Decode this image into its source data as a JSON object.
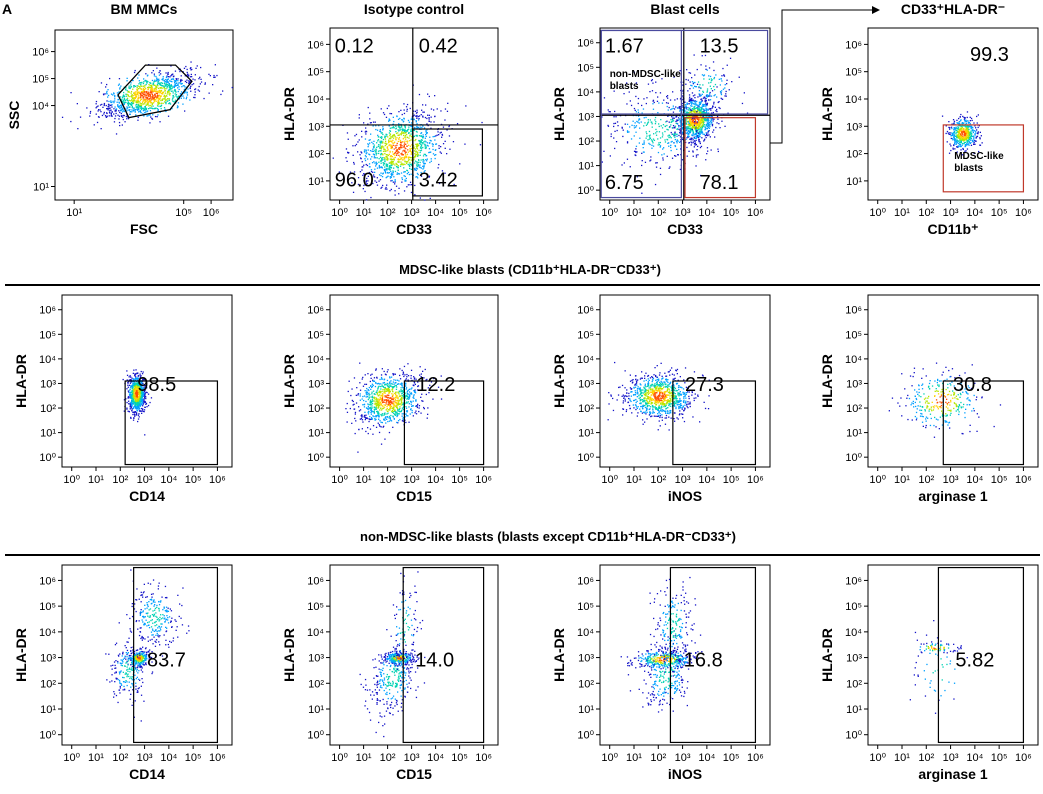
{
  "panel_letter": "A",
  "section_titles": [
    "MDSC-like blasts (CD11b⁺HLA-DR⁻CD33⁺)",
    "non-MDSC-like blasts (blasts except CD11b⁺HLA-DR⁻CD33⁺)"
  ],
  "colors": {
    "density": [
      "#1414c8",
      "#00a0ff",
      "#00d2b4",
      "#b4e600",
      "#ffd200",
      "#ff5000"
    ],
    "gate_black": "#000000",
    "gate_blue": "#4a4a9e",
    "gate_red": "#c0392b",
    "divider": "#000000"
  },
  "chart_data": [
    {
      "type": "scatter",
      "style": "density-dot-plot",
      "title": "BM MMCs",
      "xlabel": "FSC",
      "ylabel": "SSC",
      "x_ticks": [
        "10¹",
        "10⁵",
        "10⁶"
      ],
      "x_tick_values": [
        1,
        5,
        6
      ],
      "y_ticks": [
        "10¹",
        "10⁴",
        "10⁵",
        "10⁶"
      ],
      "y_tick_values": [
        1,
        4,
        5,
        6
      ],
      "xlim": [
        0.3,
        6.8
      ],
      "ylim": [
        0.5,
        6.8
      ],
      "populations": [
        {
          "cx": 3.7,
          "cy": 4.4,
          "sx": 0.9,
          "sy": 0.45,
          "rho": 0.6,
          "n": 1100
        }
      ],
      "gates": [
        {
          "kind": "polygon",
          "color": "gate_black",
          "points": [
            [
              2.6,
              4.4
            ],
            [
              3.6,
              5.5
            ],
            [
              4.7,
              5.5
            ],
            [
              5.3,
              4.9
            ],
            [
              4.5,
              3.85
            ],
            [
              3.0,
              3.55
            ]
          ]
        }
      ],
      "labels": []
    },
    {
      "type": "scatter",
      "style": "density-dot-plot",
      "title": "Isotype control",
      "xlabel": "CD33",
      "ylabel": "HLA-DR",
      "x_ticks": [
        "10⁰",
        "10¹",
        "10²",
        "10³",
        "10⁴",
        "10⁵",
        "10⁶"
      ],
      "x_tick_values": [
        0,
        1,
        2,
        3,
        4,
        5,
        6
      ],
      "y_ticks": [
        "10¹",
        "10²",
        "10³",
        "10⁴",
        "10⁵",
        "10⁶"
      ],
      "y_tick_values": [
        1,
        2,
        3,
        4,
        5,
        6
      ],
      "xlim": [
        -0.4,
        6.6
      ],
      "ylim": [
        0.3,
        6.6
      ],
      "populations": [
        {
          "cx": 2.5,
          "cy": 2.2,
          "sx": 0.9,
          "sy": 0.7,
          "rho": 0.2,
          "n": 1100
        }
      ],
      "gates": [
        {
          "kind": "quad",
          "x": 3.05,
          "y": 3.05,
          "color": "gate_black"
        },
        {
          "kind": "rect",
          "x0": 3.05,
          "x1": 5.95,
          "y0": 0.45,
          "y1": 2.9,
          "color": "gate_black"
        }
      ],
      "labels": [
        {
          "text": "0.12",
          "x": -0.2,
          "y": 5.7
        },
        {
          "text": "0.42",
          "x": 3.3,
          "y": 5.7
        },
        {
          "text": "96.0",
          "x": -0.2,
          "y": 0.8
        },
        {
          "text": "3.42",
          "x": 3.3,
          "y": 0.8
        }
      ]
    },
    {
      "type": "scatter",
      "style": "density-dot-plot",
      "title": "Blast cells",
      "xlabel": "CD33",
      "ylabel": "HLA-DR",
      "x_ticks": [
        "10⁰",
        "10¹",
        "10²",
        "10³",
        "10⁴",
        "10⁵",
        "10⁶"
      ],
      "x_tick_values": [
        0,
        1,
        2,
        3,
        4,
        5,
        6
      ],
      "y_ticks": [
        "10⁰",
        "10¹",
        "10²",
        "10³",
        "10⁴",
        "10⁵",
        "10⁶"
      ],
      "y_tick_values": [
        0,
        1,
        2,
        3,
        4,
        5,
        6
      ],
      "xlim": [
        -0.4,
        6.6
      ],
      "ylim": [
        -0.4,
        6.6
      ],
      "populations": [
        {
          "cx": 3.5,
          "cy": 2.9,
          "sx": 0.4,
          "sy": 0.45,
          "rho": 0.1,
          "n": 900
        },
        {
          "cx": 2.0,
          "cy": 2.5,
          "sx": 1.1,
          "sy": 0.9,
          "rho": 0.0,
          "n": 400
        },
        {
          "cx": 4.0,
          "cy": 4.3,
          "sx": 0.6,
          "sy": 0.5,
          "rho": 0.0,
          "n": 120
        }
      ],
      "gates": [
        {
          "kind": "quad",
          "x": 3.05,
          "y": 3.05,
          "color": "gate_black"
        },
        {
          "kind": "rect",
          "x0": -0.35,
          "x1": 6.5,
          "y0": 3.1,
          "y1": 6.5,
          "color": "gate_blue"
        },
        {
          "kind": "rect",
          "x0": -0.35,
          "x1": 2.95,
          "y0": -0.3,
          "y1": 6.5,
          "color": "gate_blue"
        },
        {
          "kind": "rect",
          "x0": 3.1,
          "x1": 6.0,
          "y0": -0.3,
          "y1": 2.95,
          "color": "gate_red"
        }
      ],
      "labels": [
        {
          "text": "1.67",
          "x": -0.2,
          "y": 5.6
        },
        {
          "text": "13.5",
          "x": 3.7,
          "y": 5.6
        },
        {
          "text": "6.75",
          "x": -0.2,
          "y": 0.05
        },
        {
          "text": "78.1",
          "x": 3.7,
          "y": 0.05
        }
      ],
      "annotations": [
        {
          "text": "non-MDSC-like blasts",
          "lines": [
            "non-MDSC-like",
            "blasts"
          ],
          "x": 0.0,
          "y": 4.6
        }
      ]
    },
    {
      "type": "scatter",
      "style": "density-dot-plot",
      "title": "CD33⁺HLA-DR⁻",
      "xlabel": "CD11b⁺",
      "ylabel": "HLA-DR",
      "x_ticks": [
        "10⁰",
        "10¹",
        "10²",
        "10³",
        "10⁴",
        "10⁵",
        "10⁶"
      ],
      "x_tick_values": [
        0,
        1,
        2,
        3,
        4,
        5,
        6
      ],
      "y_ticks": [
        "10¹",
        "10²",
        "10³",
        "10⁴",
        "10⁵",
        "10⁶"
      ],
      "y_tick_values": [
        1,
        2,
        3,
        4,
        5,
        6
      ],
      "xlim": [
        -0.4,
        6.6
      ],
      "ylim": [
        0.3,
        6.6
      ],
      "populations": [
        {
          "cx": 3.5,
          "cy": 2.75,
          "sx": 0.3,
          "sy": 0.3,
          "rho": 0.0,
          "n": 500
        }
      ],
      "gates": [
        {
          "kind": "rect",
          "x0": 2.7,
          "x1": 6.0,
          "y0": 0.6,
          "y1": 3.05,
          "color": "gate_red"
        }
      ],
      "labels": [
        {
          "text": "99.3",
          "x": 3.8,
          "y": 5.4
        }
      ],
      "annotations": [
        {
          "text": "MDSC-like blasts",
          "lines": [
            "MDSC-like",
            "blasts"
          ],
          "x": 3.15,
          "y": 1.8
        }
      ]
    },
    {
      "type": "scatter",
      "style": "density-dot-plot",
      "title": "",
      "xlabel": "CD14",
      "ylabel": "HLA-DR",
      "x_ticks": [
        "10⁰",
        "10¹",
        "10²",
        "10³",
        "10⁴",
        "10⁵",
        "10⁶"
      ],
      "x_tick_values": [
        0,
        1,
        2,
        3,
        4,
        5,
        6
      ],
      "y_ticks": [
        "10⁰",
        "10¹",
        "10²",
        "10³",
        "10⁴",
        "10⁵",
        "10⁶"
      ],
      "y_tick_values": [
        0,
        1,
        2,
        3,
        4,
        5,
        6
      ],
      "xlim": [
        -0.4,
        6.6
      ],
      "ylim": [
        -0.4,
        6.6
      ],
      "populations": [
        {
          "cx": 2.65,
          "cy": 2.6,
          "sx": 0.18,
          "sy": 0.4,
          "rho": 0.0,
          "n": 700
        }
      ],
      "gates": [
        {
          "kind": "corner",
          "x": 2.2,
          "y": 3.1,
          "x1": 6.0,
          "y0": -0.3,
          "color": "gate_black"
        }
      ],
      "labels": [
        {
          "text": "98.5",
          "x": 2.7,
          "y": 2.7
        }
      ]
    },
    {
      "type": "scatter",
      "style": "density-dot-plot",
      "title": "",
      "xlabel": "CD15",
      "ylabel": "HLA-DR",
      "x_ticks": [
        "10⁰",
        "10¹",
        "10²",
        "10³",
        "10⁴",
        "10⁵",
        "10⁶"
      ],
      "x_tick_values": [
        0,
        1,
        2,
        3,
        4,
        5,
        6
      ],
      "y_ticks": [
        "10⁰",
        "10¹",
        "10²",
        "10³",
        "10⁴",
        "10⁵",
        "10⁶"
      ],
      "y_tick_values": [
        0,
        1,
        2,
        3,
        4,
        5,
        6
      ],
      "xlim": [
        -0.4,
        6.6
      ],
      "ylim": [
        -0.4,
        6.6
      ],
      "populations": [
        {
          "cx": 2.0,
          "cy": 2.35,
          "sx": 0.7,
          "sy": 0.55,
          "rho": 0.2,
          "n": 900
        }
      ],
      "gates": [
        {
          "kind": "corner",
          "x": 2.7,
          "y": 3.1,
          "x1": 6.0,
          "y0": -0.3,
          "color": "gate_black"
        }
      ],
      "labels": [
        {
          "text": "12.2",
          "x": 3.2,
          "y": 2.7
        }
      ]
    },
    {
      "type": "scatter",
      "style": "density-dot-plot",
      "title": "",
      "xlabel": "iNOS",
      "ylabel": "HLA-DR",
      "x_ticks": [
        "10⁰",
        "10¹",
        "10²",
        "10³",
        "10⁴",
        "10⁵",
        "10⁶"
      ],
      "x_tick_values": [
        0,
        1,
        2,
        3,
        4,
        5,
        6
      ],
      "y_ticks": [
        "10⁰",
        "10¹",
        "10²",
        "10³",
        "10⁴",
        "10⁵",
        "10⁶"
      ],
      "y_tick_values": [
        0,
        1,
        2,
        3,
        4,
        5,
        6
      ],
      "xlim": [
        -0.4,
        6.6
      ],
      "ylim": [
        -0.4,
        6.6
      ],
      "populations": [
        {
          "cx": 2.0,
          "cy": 2.5,
          "sx": 0.7,
          "sy": 0.45,
          "rho": 0.0,
          "n": 900
        }
      ],
      "gates": [
        {
          "kind": "corner",
          "x": 2.6,
          "y": 3.1,
          "x1": 6.0,
          "y0": -0.3,
          "color": "gate_black"
        }
      ],
      "labels": [
        {
          "text": "27.3",
          "x": 3.1,
          "y": 2.7
        }
      ]
    },
    {
      "type": "scatter",
      "style": "density-dot-plot",
      "title": "",
      "xlabel": "arginase 1",
      "ylabel": "HLA-DR",
      "x_ticks": [
        "10⁰",
        "10¹",
        "10²",
        "10³",
        "10⁴",
        "10⁵",
        "10⁶"
      ],
      "x_tick_values": [
        0,
        1,
        2,
        3,
        4,
        5,
        6
      ],
      "y_ticks": [
        "10⁰",
        "10¹",
        "10²",
        "10³",
        "10⁴",
        "10⁵",
        "10⁶"
      ],
      "y_tick_values": [
        0,
        1,
        2,
        3,
        4,
        5,
        6
      ],
      "xlim": [
        -0.4,
        6.6
      ],
      "ylim": [
        -0.4,
        6.6
      ],
      "populations": [
        {
          "cx": 2.6,
          "cy": 2.3,
          "sx": 0.8,
          "sy": 0.6,
          "rho": 0.0,
          "n": 300
        }
      ],
      "gates": [
        {
          "kind": "corner",
          "x": 2.7,
          "y": 3.1,
          "x1": 6.0,
          "y0": -0.3,
          "color": "gate_black"
        }
      ],
      "labels": [
        {
          "text": "30.8",
          "x": 3.1,
          "y": 2.7
        }
      ]
    },
    {
      "type": "scatter",
      "style": "density-dot-plot",
      "title": "",
      "xlabel": "CD14",
      "ylabel": "HLA-DR",
      "x_ticks": [
        "10⁰",
        "10¹",
        "10²",
        "10³",
        "10⁴",
        "10⁵",
        "10⁶"
      ],
      "x_tick_values": [
        0,
        1,
        2,
        3,
        4,
        5,
        6
      ],
      "y_ticks": [
        "10⁰",
        "10¹",
        "10²",
        "10³",
        "10⁴",
        "10⁵",
        "10⁶"
      ],
      "y_tick_values": [
        0,
        1,
        2,
        3,
        4,
        5,
        6
      ],
      "xlim": [
        -0.4,
        6.6
      ],
      "ylim": [
        -0.4,
        6.6
      ],
      "populations": [
        {
          "cx": 2.75,
          "cy": 3.0,
          "sx": 0.2,
          "sy": 0.15,
          "rho": 0.0,
          "n": 250
        },
        {
          "cx": 2.3,
          "cy": 2.5,
          "sx": 0.4,
          "sy": 0.6,
          "rho": 0.0,
          "n": 200
        },
        {
          "cx": 3.4,
          "cy": 4.6,
          "sx": 0.5,
          "sy": 0.6,
          "rho": 0.0,
          "n": 250
        }
      ],
      "gates": [
        {
          "kind": "rect",
          "x0": 2.55,
          "x1": 6.0,
          "y0": -0.3,
          "y1": 6.5,
          "color": "gate_black"
        }
      ],
      "labels": [
        {
          "text": "83.7",
          "x": 3.1,
          "y": 2.65
        }
      ]
    },
    {
      "type": "scatter",
      "style": "density-dot-plot",
      "title": "",
      "xlabel": "CD15",
      "ylabel": "HLA-DR",
      "x_ticks": [
        "10⁰",
        "10¹",
        "10²",
        "10³",
        "10⁴",
        "10⁵",
        "10⁶"
      ],
      "x_tick_values": [
        0,
        1,
        2,
        3,
        4,
        5,
        6
      ],
      "y_ticks": [
        "10⁰",
        "10¹",
        "10²",
        "10³",
        "10⁴",
        "10⁵",
        "10⁶"
      ],
      "y_tick_values": [
        0,
        1,
        2,
        3,
        4,
        5,
        6
      ],
      "xlim": [
        -0.4,
        6.6
      ],
      "ylim": [
        -0.4,
        6.6
      ],
      "populations": [
        {
          "cx": 2.45,
          "cy": 3.0,
          "sx": 0.3,
          "sy": 0.12,
          "rho": 0.0,
          "n": 250
        },
        {
          "cx": 2.2,
          "cy": 2.2,
          "sx": 0.5,
          "sy": 0.7,
          "rho": 0.3,
          "n": 300
        },
        {
          "cx": 2.7,
          "cy": 4.2,
          "sx": 0.3,
          "sy": 0.9,
          "rho": 0.0,
          "n": 100
        }
      ],
      "gates": [
        {
          "kind": "rect",
          "x0": 2.65,
          "x1": 6.0,
          "y0": -0.3,
          "y1": 6.5,
          "color": "gate_black"
        }
      ],
      "labels": [
        {
          "text": "14.0",
          "x": 3.15,
          "y": 2.65
        }
      ]
    },
    {
      "type": "scatter",
      "style": "density-dot-plot",
      "title": "",
      "xlabel": "iNOS",
      "ylabel": "HLA-DR",
      "x_ticks": [
        "10⁰",
        "10¹",
        "10²",
        "10³",
        "10⁴",
        "10⁵",
        "10⁶"
      ],
      "x_tick_values": [
        0,
        1,
        2,
        3,
        4,
        5,
        6
      ],
      "y_ticks": [
        "10⁰",
        "10¹",
        "10²",
        "10³",
        "10⁴",
        "10⁵",
        "10⁶"
      ],
      "y_tick_values": [
        0,
        1,
        2,
        3,
        4,
        5,
        6
      ],
      "xlim": [
        -0.4,
        6.6
      ],
      "ylim": [
        -0.4,
        6.6
      ],
      "populations": [
        {
          "cx": 2.2,
          "cy": 2.95,
          "sx": 0.6,
          "sy": 0.18,
          "rho": 0.0,
          "n": 350
        },
        {
          "cx": 2.3,
          "cy": 2.3,
          "sx": 0.5,
          "sy": 0.7,
          "rho": 0.3,
          "n": 250
        },
        {
          "cx": 2.6,
          "cy": 4.3,
          "sx": 0.4,
          "sy": 0.8,
          "rho": 0.0,
          "n": 200
        }
      ],
      "gates": [
        {
          "kind": "rect",
          "x0": 2.5,
          "x1": 6.0,
          "y0": -0.3,
          "y1": 6.5,
          "color": "gate_black"
        }
      ],
      "labels": [
        {
          "text": "16.8",
          "x": 3.05,
          "y": 2.65
        }
      ]
    },
    {
      "type": "scatter",
      "style": "density-dot-plot",
      "title": "",
      "xlabel": "arginase 1",
      "ylabel": "HLA-DR",
      "x_ticks": [
        "10⁰",
        "10¹",
        "10²",
        "10³",
        "10⁴",
        "10⁵",
        "10⁶"
      ],
      "x_tick_values": [
        0,
        1,
        2,
        3,
        4,
        5,
        6
      ],
      "y_ticks": [
        "10⁰",
        "10¹",
        "10²",
        "10³",
        "10⁴",
        "10⁵",
        "10⁶"
      ],
      "y_tick_values": [
        0,
        1,
        2,
        3,
        4,
        5,
        6
      ],
      "xlim": [
        -0.4,
        6.6
      ],
      "ylim": [
        -0.4,
        6.6
      ],
      "populations": [
        {
          "cx": 2.4,
          "cy": 3.4,
          "sx": 0.5,
          "sy": 0.1,
          "rho": 0.0,
          "n": 60
        },
        {
          "cx": 2.5,
          "cy": 2.5,
          "sx": 0.6,
          "sy": 0.8,
          "rho": 0.0,
          "n": 50
        }
      ],
      "gates": [
        {
          "kind": "rect",
          "x0": 2.5,
          "x1": 6.0,
          "y0": -0.3,
          "y1": 6.5,
          "color": "gate_black"
        }
      ],
      "labels": [
        {
          "text": "5.82",
          "x": 3.2,
          "y": 2.65
        }
      ]
    }
  ]
}
